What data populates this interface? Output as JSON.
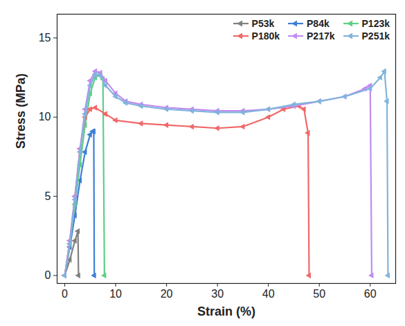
{
  "chart_data": {
    "type": "line",
    "x_label": "Strain (%)",
    "y_label": "Stress (MPa)",
    "xlim": [
      -1.5,
      65
    ],
    "ylim": [
      -0.5,
      16.5
    ],
    "xticks": [
      0,
      10,
      20,
      30,
      40,
      50,
      60
    ],
    "yticks": [
      0,
      5,
      10,
      15
    ],
    "legend": "top-right",
    "series": [
      {
        "name": "P53k",
        "color": "#808080",
        "marker": "triangle-left",
        "x": [
          0,
          1,
          2,
          2.6,
          2.7
        ],
        "values": [
          0,
          1,
          2.2,
          2.8,
          0
        ]
      },
      {
        "name": "P84k",
        "color": "#3c7fd6",
        "marker": "triangle-left",
        "x": [
          0,
          1,
          2,
          3,
          4,
          5,
          5.5,
          5.7,
          5.8
        ],
        "values": [
          0,
          1.8,
          3.8,
          6,
          7.8,
          8.9,
          9.1,
          9.1,
          0
        ]
      },
      {
        "name": "P123k",
        "color": "#5ccf86",
        "marker": "triangle-left",
        "x": [
          0,
          1,
          2,
          3,
          4,
          5,
          6,
          7,
          7.5,
          7.8
        ],
        "values": [
          0,
          2,
          4.5,
          7,
          9.5,
          11.5,
          12.5,
          12.7,
          12.4,
          0
        ]
      },
      {
        "name": "P180k",
        "color": "#f06868",
        "marker": "triangle-left",
        "x": [
          0,
          1,
          2,
          3,
          4,
          5,
          6,
          8,
          10,
          15,
          20,
          25,
          30,
          35,
          40,
          43,
          46,
          47,
          47.8,
          48
        ],
        "values": [
          0,
          2.2,
          5,
          8,
          10,
          10.5,
          10.6,
          10.2,
          9.8,
          9.6,
          9.5,
          9.4,
          9.3,
          9.4,
          10,
          10.5,
          10.7,
          10.5,
          9,
          0
        ]
      },
      {
        "name": "P217k",
        "color": "#c08cf0",
        "marker": "triangle-left",
        "x": [
          0,
          1,
          2,
          3,
          4,
          5,
          6,
          7,
          8,
          10,
          12,
          15,
          20,
          25,
          30,
          35,
          40,
          45,
          50,
          55,
          59,
          60,
          60.3
        ],
        "values": [
          0,
          2.2,
          5,
          8,
          10.5,
          12.3,
          12.9,
          12.8,
          12.3,
          11.5,
          11,
          10.8,
          10.6,
          10.5,
          10.4,
          10.4,
          10.5,
          10.7,
          11,
          11.3,
          11.8,
          12,
          0
        ]
      },
      {
        "name": "P251k",
        "color": "#80b4dc",
        "marker": "triangle-left",
        "x": [
          0,
          1,
          2,
          3,
          4,
          5,
          6,
          7,
          8,
          10,
          12,
          15,
          20,
          25,
          30,
          35,
          40,
          45,
          50,
          55,
          60,
          62,
          62.8,
          63.3,
          63.5
        ],
        "values": [
          0,
          2,
          4.8,
          7.8,
          10.2,
          12,
          12.7,
          12.6,
          12,
          11.3,
          10.9,
          10.7,
          10.5,
          10.4,
          10.3,
          10.3,
          10.5,
          10.8,
          11,
          11.3,
          11.8,
          12.5,
          12.9,
          11,
          0
        ]
      }
    ]
  }
}
